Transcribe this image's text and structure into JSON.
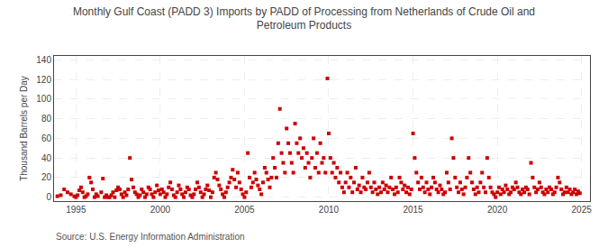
{
  "chart_data": {
    "type": "scatter",
    "title": "Monthly Gulf Coast (PADD 3) Imports by PADD of Processing from Netherlands of Crude Oil and\nPetroleum Products",
    "ylabel": "Thousand Barrels per Day",
    "annotations": [
      "Source: U.S. Energy Information Administration"
    ],
    "color": "#cc0000",
    "marker": "square",
    "grid": true,
    "xlim": [
      1993.7,
      2025.5
    ],
    "ylim": [
      -4,
      144
    ],
    "xticks": [
      1995,
      2000,
      2005,
      2010,
      2015,
      2020,
      2025
    ],
    "yticks": [
      0,
      20,
      40,
      60,
      80,
      100,
      120,
      140
    ],
    "x": [
      1993.9,
      1994.1,
      1994.3,
      1994.5,
      1994.7,
      1994.9,
      1995.0,
      1995.1,
      1995.2,
      1995.3,
      1995.4,
      1995.5,
      1995.6,
      1995.7,
      1995.8,
      1995.9,
      1996.0,
      1996.1,
      1996.2,
      1996.3,
      1996.5,
      1996.6,
      1996.7,
      1996.8,
      1996.9,
      1997.0,
      1997.1,
      1997.2,
      1997.3,
      1997.4,
      1997.5,
      1997.6,
      1997.7,
      1997.8,
      1997.9,
      1998.0,
      1998.1,
      1998.2,
      1998.3,
      1998.4,
      1998.5,
      1998.6,
      1998.7,
      1998.8,
      1998.9,
      1999.0,
      1999.1,
      1999.2,
      1999.3,
      1999.4,
      1999.5,
      1999.6,
      1999.7,
      1999.8,
      1999.9,
      2000.0,
      2000.1,
      2000.2,
      2000.3,
      2000.4,
      2000.5,
      2000.6,
      2000.7,
      2000.8,
      2000.9,
      2001.0,
      2001.1,
      2001.2,
      2001.3,
      2001.4,
      2001.5,
      2001.6,
      2001.7,
      2001.8,
      2001.9,
      2002.0,
      2002.1,
      2002.2,
      2002.3,
      2002.4,
      2002.5,
      2002.6,
      2002.7,
      2002.8,
      2002.9,
      2003.0,
      2003.1,
      2003.2,
      2003.3,
      2003.4,
      2003.5,
      2003.6,
      2003.7,
      2003.8,
      2003.9,
      2004.0,
      2004.1,
      2004.2,
      2004.3,
      2004.4,
      2004.5,
      2004.6,
      2004.7,
      2004.8,
      2004.9,
      2005.0,
      2005.1,
      2005.2,
      2005.3,
      2005.4,
      2005.5,
      2005.6,
      2005.7,
      2005.8,
      2005.9,
      2006.0,
      2006.1,
      2006.2,
      2006.3,
      2006.4,
      2006.5,
      2006.6,
      2006.7,
      2006.8,
      2006.9,
      2007.0,
      2007.1,
      2007.2,
      2007.3,
      2007.4,
      2007.5,
      2007.6,
      2007.7,
      2007.8,
      2007.9,
      2008.0,
      2008.1,
      2008.2,
      2008.3,
      2008.4,
      2008.5,
      2008.6,
      2008.7,
      2008.8,
      2008.9,
      2009.0,
      2009.1,
      2009.2,
      2009.3,
      2009.4,
      2009.5,
      2009.6,
      2009.7,
      2009.8,
      2009.92,
      2010.0,
      2010.1,
      2010.2,
      2010.3,
      2010.4,
      2010.5,
      2010.6,
      2010.7,
      2010.8,
      2010.9,
      2011.0,
      2011.1,
      2011.2,
      2011.3,
      2011.4,
      2011.5,
      2011.6,
      2011.7,
      2011.8,
      2011.9,
      2012.0,
      2012.1,
      2012.2,
      2012.3,
      2012.4,
      2012.5,
      2012.6,
      2012.7,
      2012.8,
      2012.9,
      2013.0,
      2013.1,
      2013.2,
      2013.3,
      2013.4,
      2013.5,
      2013.6,
      2013.7,
      2013.8,
      2013.9,
      2014.0,
      2014.1,
      2014.2,
      2014.3,
      2014.4,
      2014.5,
      2014.6,
      2014.7,
      2014.8,
      2014.9,
      2015.0,
      2015.1,
      2015.2,
      2015.3,
      2015.4,
      2015.5,
      2015.6,
      2015.7,
      2015.8,
      2015.9,
      2016.0,
      2016.1,
      2016.2,
      2016.3,
      2016.4,
      2016.5,
      2016.6,
      2016.7,
      2016.8,
      2016.9,
      2017.0,
      2017.1,
      2017.2,
      2017.3,
      2017.4,
      2017.5,
      2017.6,
      2017.7,
      2017.8,
      2017.9,
      2018.0,
      2018.1,
      2018.2,
      2018.3,
      2018.4,
      2018.5,
      2018.6,
      2018.7,
      2018.8,
      2018.9,
      2019.0,
      2019.1,
      2019.2,
      2019.3,
      2019.4,
      2019.5,
      2019.6,
      2019.7,
      2019.8,
      2019.9,
      2020.0,
      2020.1,
      2020.2,
      2020.3,
      2020.4,
      2020.5,
      2020.6,
      2020.7,
      2020.8,
      2020.9,
      2021.0,
      2021.1,
      2021.2,
      2021.3,
      2021.4,
      2021.5,
      2021.6,
      2021.7,
      2021.8,
      2021.9,
      2022.0,
      2022.1,
      2022.2,
      2022.3,
      2022.4,
      2022.5,
      2022.6,
      2022.7,
      2022.8,
      2022.9,
      2023.0,
      2023.1,
      2023.2,
      2023.3,
      2023.4,
      2023.5,
      2023.6,
      2023.7,
      2023.8,
      2023.9,
      2024.0,
      2024.1,
      2024.2,
      2024.3,
      2024.4,
      2024.5,
      2024.6,
      2024.7,
      2024.8,
      2024.9
    ],
    "values": [
      1,
      2,
      8,
      5,
      3,
      1,
      0,
      2,
      7,
      10,
      5,
      0,
      1,
      3,
      20,
      15,
      8,
      0,
      3,
      1,
      5,
      19,
      0,
      2,
      0,
      0,
      2,
      5,
      0,
      7,
      10,
      8,
      3,
      0,
      5,
      2,
      8,
      40,
      18,
      10,
      5,
      3,
      0,
      2,
      8,
      5,
      0,
      3,
      10,
      8,
      3,
      0,
      5,
      12,
      7,
      3,
      8,
      5,
      0,
      3,
      10,
      15,
      8,
      2,
      0,
      5,
      12,
      8,
      3,
      0,
      5,
      10,
      8,
      2,
      0,
      3,
      8,
      15,
      10,
      5,
      0,
      3,
      8,
      12,
      7,
      0,
      5,
      20,
      25,
      18,
      12,
      8,
      3,
      0,
      5,
      10,
      15,
      20,
      28,
      18,
      10,
      25,
      15,
      8,
      3,
      0,
      5,
      45,
      20,
      10,
      15,
      25,
      18,
      12,
      8,
      3,
      15,
      30,
      25,
      18,
      10,
      20,
      40,
      30,
      20,
      55,
      90,
      45,
      35,
      25,
      70,
      55,
      45,
      35,
      25,
      75,
      55,
      45,
      60,
      40,
      50,
      30,
      45,
      35,
      20,
      40,
      60,
      30,
      45,
      25,
      55,
      35,
      40,
      25,
      121,
      65,
      40,
      25,
      35,
      20,
      30,
      15,
      25,
      10,
      5,
      15,
      25,
      10,
      20,
      5,
      15,
      30,
      8,
      12,
      5,
      20,
      10,
      8,
      15,
      25,
      10,
      5,
      15,
      8,
      3,
      10,
      5,
      15,
      8,
      12,
      5,
      10,
      20,
      8,
      3,
      10,
      5,
      20,
      15,
      8,
      12,
      5,
      10,
      3,
      8,
      65,
      40,
      25,
      15,
      8,
      20,
      10,
      5,
      15,
      8,
      3,
      10,
      20,
      15,
      8,
      5,
      12,
      8,
      3,
      5,
      25,
      15,
      8,
      60,
      40,
      20,
      10,
      5,
      15,
      8,
      3,
      10,
      20,
      40,
      25,
      15,
      8,
      3,
      10,
      5,
      15,
      25,
      10,
      5,
      40,
      20,
      10,
      5,
      3,
      0,
      5,
      10,
      3,
      8,
      5,
      12,
      8,
      3,
      5,
      10,
      8,
      15,
      10,
      5,
      3,
      8,
      5,
      10,
      8,
      3,
      35,
      20,
      10,
      5,
      8,
      15,
      10,
      5,
      3,
      8,
      5,
      10,
      8,
      3,
      5,
      10,
      20,
      15,
      8,
      3,
      5,
      10,
      5,
      8,
      3,
      5,
      8,
      3,
      6,
      4
    ]
  }
}
